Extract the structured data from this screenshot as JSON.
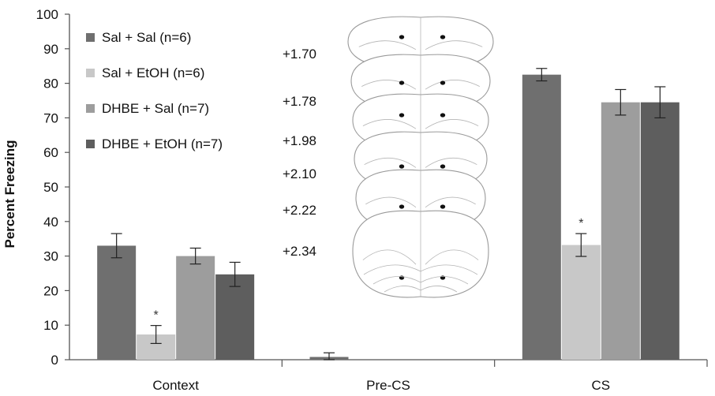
{
  "chart_data": {
    "type": "bar",
    "ylabel": "Percent Freezing",
    "ylim": [
      0,
      100
    ],
    "yticks": [
      "0",
      "10",
      "20",
      "30",
      "40",
      "50",
      "60",
      "70",
      "80",
      "90",
      "100"
    ],
    "categories": [
      "Context",
      "Pre-CS",
      "CS"
    ],
    "series": [
      {
        "name": "Sal + Sal (n=6)",
        "color": "#6f6f6f",
        "values": [
          33,
          0.8,
          82.5
        ],
        "errors": [
          3.5,
          1.2,
          1.8
        ]
      },
      {
        "name": "Sal + EtOH (n=6)",
        "color": "#c8c8c8",
        "values": [
          7.3,
          null,
          33.2
        ],
        "errors": [
          2.6,
          null,
          3.3
        ]
      },
      {
        "name": "DHBE + Sal (n=7)",
        "color": "#9d9d9d",
        "values": [
          30,
          null,
          74.5
        ],
        "errors": [
          2.3,
          null,
          3.7
        ]
      },
      {
        "name": "DHBE + EtOH (n=7)",
        "color": "#5e5e5e",
        "values": [
          24.7,
          null,
          74.5
        ],
        "errors": [
          3.5,
          null,
          4.5
        ]
      }
    ],
    "significance_marks": [
      {
        "category": "Context",
        "series": "Sal + EtOH (n=6)",
        "text": "*"
      },
      {
        "category": "CS",
        "series": "Sal + EtOH (n=6)",
        "text": "*"
      }
    ],
    "legend_position": "top-left",
    "grid": false,
    "inset_coordinates": [
      "+1.70",
      "+1.78",
      "+1.98",
      "+2.10",
      "+2.22",
      "+2.34"
    ]
  }
}
